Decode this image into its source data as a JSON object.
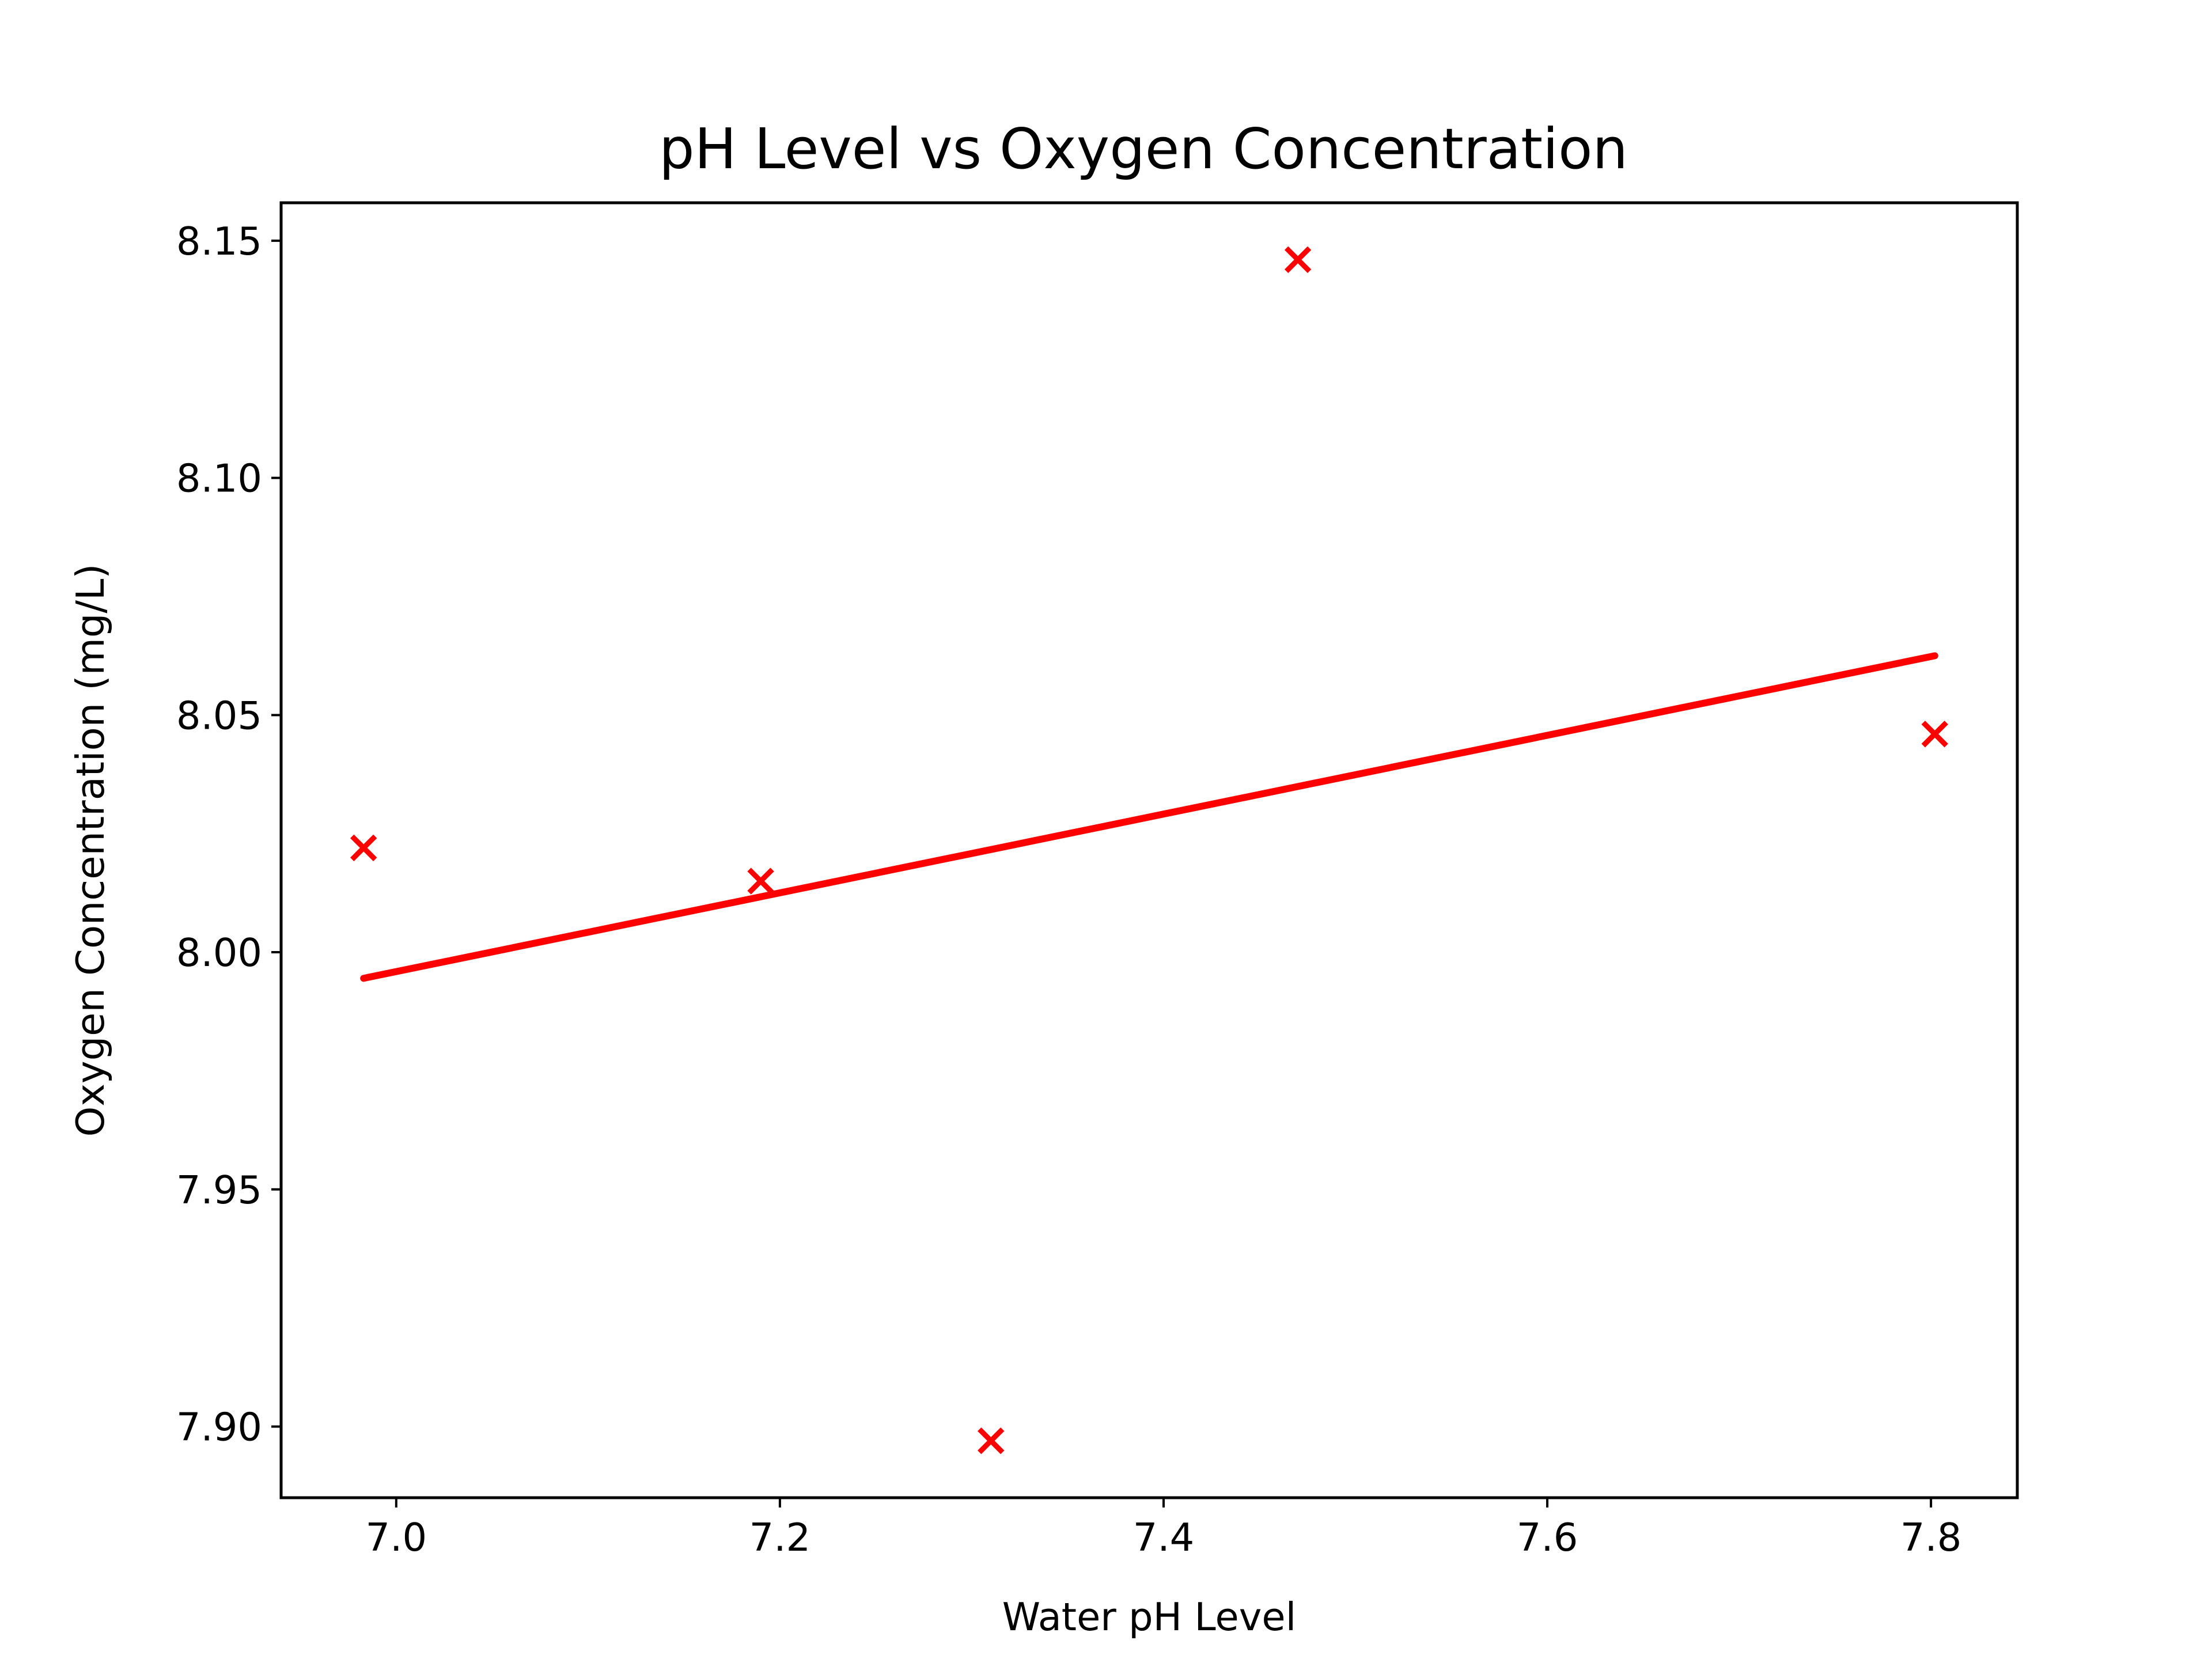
{
  "chart_data": {
    "type": "scatter",
    "title": "pH Level vs Oxygen Concentration",
    "xlabel": "Water pH Level",
    "ylabel": "Oxygen Concentration (mg/L)",
    "xlim": [
      6.94,
      7.845
    ],
    "ylim": [
      7.885,
      8.158
    ],
    "x_ticks": [
      7.0,
      7.2,
      7.4,
      7.6,
      7.8
    ],
    "x_tick_labels": [
      "7.0",
      "7.2",
      "7.4",
      "7.6",
      "7.8"
    ],
    "y_ticks": [
      7.9,
      7.95,
      8.0,
      8.05,
      8.1,
      8.15
    ],
    "y_tick_labels": [
      "7.90",
      "7.95",
      "8.00",
      "8.05",
      "8.10",
      "8.15"
    ],
    "grid": false,
    "series": [
      {
        "kind": "scatter",
        "marker": "x",
        "color": "#ff0000",
        "points": [
          {
            "x": 6.983,
            "y": 8.022
          },
          {
            "x": 7.19,
            "y": 8.015
          },
          {
            "x": 7.31,
            "y": 7.897
          },
          {
            "x": 7.47,
            "y": 8.146
          },
          {
            "x": 7.802,
            "y": 8.046
          }
        ]
      },
      {
        "kind": "line",
        "color": "#ff0000",
        "points": [
          {
            "x": 6.983,
            "y": 7.9945
          },
          {
            "x": 7.802,
            "y": 8.0625
          }
        ]
      }
    ]
  }
}
